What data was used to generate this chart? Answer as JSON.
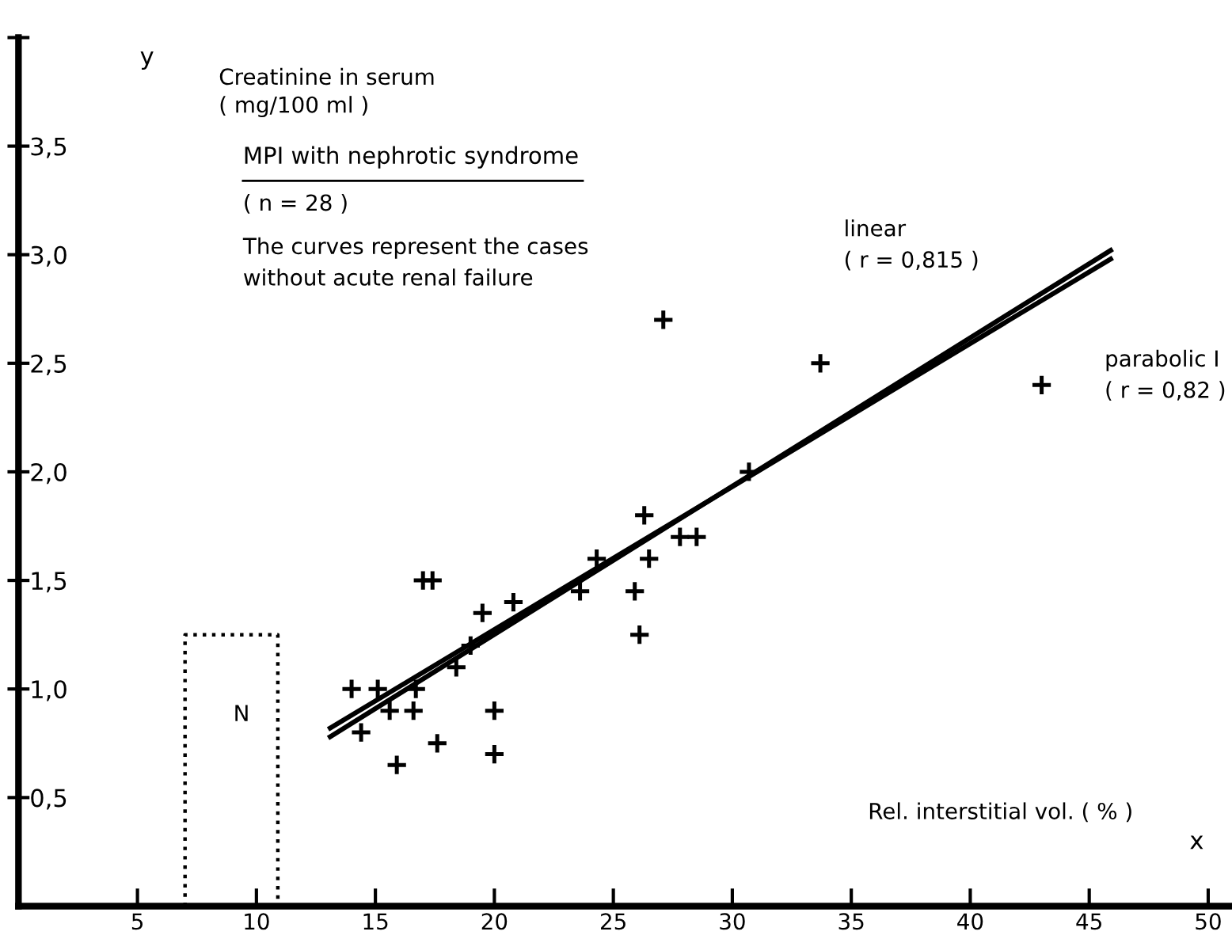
{
  "chart_data": {
    "type": "scatter",
    "title": "MPI with nephrotic syndrome",
    "subtitle": "( n = 28 )",
    "ylabel": "Creatinine in serum\n( mg/100 ml )",
    "xlabel": "Rel. interstitial vol. ( % )",
    "xlim": [
      0,
      51
    ],
    "xticks": [
      5,
      10,
      15,
      20,
      25,
      30,
      35,
      40,
      45,
      50
    ],
    "ylim": [
      0,
      4
    ],
    "yticks": [
      {
        "value": 0.5,
        "label": "0,5"
      },
      {
        "value": 1.0,
        "label": "1,0"
      },
      {
        "value": 1.5,
        "label": "1,5"
      },
      {
        "value": 2.0,
        "label": "2,0"
      },
      {
        "value": 2.5,
        "label": "2,5"
      },
      {
        "value": 3.0,
        "label": "3,0"
      },
      {
        "value": 3.5,
        "label": "3,5"
      },
      {
        "value": 4.0,
        "label": null
      }
    ],
    "grid": false,
    "series": [
      {
        "marker": "cross",
        "color": "#000000",
        "x": [
          14.0,
          14.4,
          15.1,
          15.6,
          15.9,
          16.6,
          16.7,
          17.0,
          17.4,
          17.6,
          18.4,
          19.0,
          19.5,
          20.0,
          20.0,
          20.8,
          23.6,
          24.3,
          25.9,
          26.1,
          26.3,
          26.5,
          27.1,
          27.8,
          28.5,
          30.7,
          33.7,
          43.0
        ],
        "values": [
          1.0,
          0.8,
          1.0,
          0.9,
          0.65,
          0.9,
          1.0,
          1.5,
          1.5,
          0.75,
          1.1,
          1.2,
          1.35,
          0.9,
          0.7,
          1.4,
          1.45,
          1.6,
          1.45,
          1.25,
          1.8,
          1.6,
          2.7,
          1.7,
          1.7,
          2.0,
          2.5,
          2.4
        ]
      },
      {
        "type": "line",
        "color": "#000000",
        "line_style": "solid",
        "x": [
          13.1,
          45.9
        ],
        "values": [
          0.78,
          3.02
        ]
      },
      {
        "type": "line",
        "color": "#000000",
        "line_style": "solid",
        "x": [
          13.1,
          28.0,
          45.9
        ],
        "values": [
          0.82,
          1.8,
          2.98
        ]
      },
      {
        "type": "line",
        "color": "#000000",
        "line_style": "dotted",
        "x": [
          7.0,
          7.0,
          10.9,
          10.9
        ],
        "values": [
          0,
          1.25,
          1.25,
          0
        ]
      }
    ],
    "annotations": [
      "The curves represent the cases\nwithout acute renal failure",
      "y",
      "x",
      "linear\n( r = 0,815 )",
      "parabolic I\n( r = 0,82 )",
      "N"
    ]
  }
}
